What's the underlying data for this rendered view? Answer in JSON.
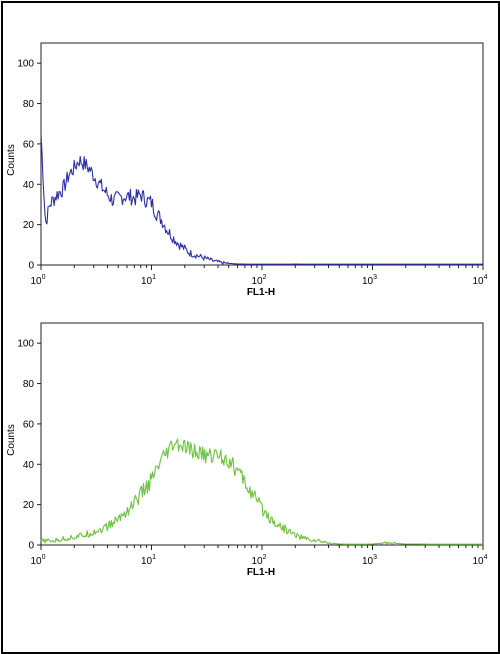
{
  "chart_data": [
    {
      "type": "line",
      "panel": "top",
      "xlabel": "FL1-H",
      "ylabel": "Counts",
      "x_scale": "log",
      "xlim": [
        1,
        10000
      ],
      "ylim": [
        0,
        110
      ],
      "x_ticks": [
        {
          "base": "10",
          "exp": "0"
        },
        {
          "base": "10",
          "exp": "1"
        },
        {
          "base": "10",
          "exp": "2"
        },
        {
          "base": "10",
          "exp": "3"
        },
        {
          "base": "10",
          "exp": "4"
        }
      ],
      "y_ticks": [
        "0",
        "20",
        "40",
        "60",
        "80",
        "100"
      ],
      "y_tick_values": [
        0,
        20,
        40,
        60,
        80,
        100
      ],
      "color": "#2b2fa3",
      "series": [
        {
          "x": [
            1.0,
            1.1,
            1.2,
            1.4,
            1.6,
            1.8,
            2.0,
            2.2,
            2.5,
            2.8,
            3.2,
            3.6,
            4.0,
            4.5,
            5.0,
            5.6,
            6.3,
            7.1,
            8.0,
            9.0,
            10,
            11,
            12.5,
            14,
            16,
            18,
            20,
            22,
            25,
            28,
            32,
            36,
            40,
            45,
            50,
            56,
            63,
            71,
            80,
            90,
            100,
            112,
            125,
            141,
            158,
            178,
            200,
            250,
            400,
            1000,
            3000,
            10000
          ],
          "y": [
            65,
            20,
            30,
            35,
            38,
            45,
            48,
            52,
            50,
            47,
            42,
            38,
            35,
            32,
            33,
            34,
            34,
            33,
            35,
            32,
            31,
            26,
            22,
            17,
            13,
            10,
            8,
            6,
            5,
            4,
            3,
            2,
            1.5,
            1,
            0.8,
            0.6,
            0.5,
            0.4,
            0.3,
            0.3,
            0.4,
            0.3,
            0.2,
            0.2,
            0.2,
            0.2,
            0.5,
            0.1,
            0,
            0,
            0,
            0
          ]
        }
      ]
    },
    {
      "type": "line",
      "panel": "bottom",
      "xlabel": "FL1-H",
      "ylabel": "Counts",
      "x_scale": "log",
      "xlim": [
        1,
        10000
      ],
      "ylim": [
        0,
        110
      ],
      "x_ticks": [
        {
          "base": "10",
          "exp": "0"
        },
        {
          "base": "10",
          "exp": "1"
        },
        {
          "base": "10",
          "exp": "2"
        },
        {
          "base": "10",
          "exp": "3"
        },
        {
          "base": "10",
          "exp": "4"
        }
      ],
      "y_ticks": [
        "0",
        "20",
        "40",
        "60",
        "80",
        "100"
      ],
      "y_tick_values": [
        0,
        20,
        40,
        60,
        80,
        100
      ],
      "color": "#6dc23f",
      "series": [
        {
          "x": [
            1.0,
            1.3,
            1.6,
            2.0,
            2.5,
            3.2,
            4.0,
            5.0,
            6.3,
            8.0,
            10,
            12.5,
            16,
            20,
            25,
            32,
            40,
            50,
            63,
            80,
            100,
            125,
            160,
            200,
            250,
            320,
            400,
            500,
            630,
            800,
            1000,
            1300,
            1600,
            2000,
            2500,
            3200,
            4000,
            5000,
            6300,
            8000,
            10000
          ],
          "y": [
            2,
            2,
            3,
            4,
            5,
            7,
            9,
            13,
            18,
            25,
            32,
            42,
            50,
            48,
            46,
            44,
            45,
            42,
            35,
            26,
            18,
            12,
            8,
            5,
            3,
            2,
            1,
            0.5,
            0.3,
            0.3,
            0.5,
            1,
            0.8,
            0.5,
            0.5,
            0.4,
            0.3,
            0.3,
            0.2,
            0.2,
            0.1
          ]
        }
      ]
    }
  ]
}
